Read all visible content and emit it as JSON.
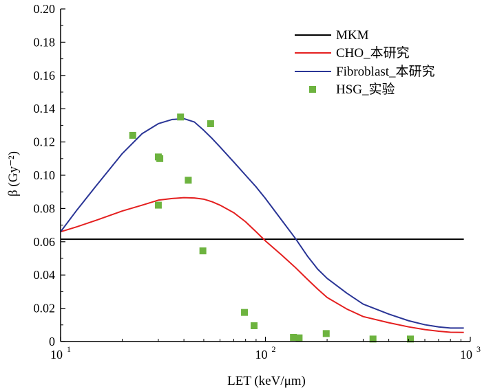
{
  "chart_data": {
    "type": "line",
    "xscale": "log",
    "xlim": [
      10,
      1000
    ],
    "ylim": [
      0,
      0.2
    ],
    "xlabel": "LET (keV/μm)",
    "ylabel": "β (Gy⁻²)",
    "xticks": [
      {
        "value": 10,
        "base": "10",
        "exp": "1"
      },
      {
        "value": 100,
        "base": "10",
        "exp": "2"
      },
      {
        "value": 1000,
        "base": "10",
        "exp": "3"
      }
    ],
    "yticks": [
      "0",
      "0.02",
      "0.04",
      "0.06",
      "0.08",
      "0.10",
      "0.12",
      "0.14",
      "0.16",
      "0.18",
      "0.20"
    ],
    "legend_position": "top-right",
    "series": [
      {
        "name": "MKM",
        "kind": "line",
        "color": "#000000",
        "points": [
          [
            10,
            0.0615
          ],
          [
            930,
            0.0615
          ]
        ]
      },
      {
        "name": "CHO_本研究",
        "kind": "line",
        "color": "#e41f1f",
        "points": [
          [
            10,
            0.066
          ],
          [
            12,
            0.069
          ],
          [
            15,
            0.073
          ],
          [
            20,
            0.0785
          ],
          [
            25,
            0.082
          ],
          [
            30,
            0.085
          ],
          [
            35,
            0.086
          ],
          [
            40,
            0.0865
          ],
          [
            45,
            0.0863
          ],
          [
            50,
            0.0856
          ],
          [
            55,
            0.084
          ],
          [
            60,
            0.082
          ],
          [
            70,
            0.0775
          ],
          [
            80,
            0.072
          ],
          [
            90,
            0.066
          ],
          [
            100,
            0.0605
          ],
          [
            120,
            0.052
          ],
          [
            140,
            0.0445
          ],
          [
            160,
            0.0375
          ],
          [
            180,
            0.0315
          ],
          [
            200,
            0.0265
          ],
          [
            250,
            0.0195
          ],
          [
            300,
            0.015
          ],
          [
            400,
            0.0113
          ],
          [
            500,
            0.0088
          ],
          [
            600,
            0.0072
          ],
          [
            700,
            0.0062
          ],
          [
            800,
            0.0056
          ],
          [
            930,
            0.0055
          ]
        ]
      },
      {
        "name": "Fibroblast_本研究",
        "kind": "line",
        "color": "#2a3596",
        "points": [
          [
            10,
            0.066
          ],
          [
            12,
            0.079
          ],
          [
            15,
            0.094
          ],
          [
            20,
            0.113
          ],
          [
            25,
            0.125
          ],
          [
            30,
            0.131
          ],
          [
            35,
            0.1335
          ],
          [
            40,
            0.134
          ],
          [
            45,
            0.132
          ],
          [
            50,
            0.127
          ],
          [
            55,
            0.122
          ],
          [
            60,
            0.117
          ],
          [
            70,
            0.108
          ],
          [
            80,
            0.1
          ],
          [
            90,
            0.093
          ],
          [
            100,
            0.086
          ],
          [
            120,
            0.073
          ],
          [
            140,
            0.062
          ],
          [
            160,
            0.0515
          ],
          [
            180,
            0.0435
          ],
          [
            200,
            0.038
          ],
          [
            250,
            0.029
          ],
          [
            300,
            0.0225
          ],
          [
            400,
            0.0165
          ],
          [
            500,
            0.0125
          ],
          [
            600,
            0.0101
          ],
          [
            700,
            0.0088
          ],
          [
            800,
            0.0081
          ],
          [
            930,
            0.0081
          ]
        ]
      },
      {
        "name": "HSG_实验",
        "kind": "scatter",
        "color": "#6db33f",
        "points": [
          [
            22.5,
            0.124
          ],
          [
            30,
            0.082
          ],
          [
            30,
            0.111
          ],
          [
            30.5,
            0.11
          ],
          [
            38.5,
            0.135
          ],
          [
            42,
            0.097
          ],
          [
            49.5,
            0.0545
          ],
          [
            54,
            0.131
          ],
          [
            79,
            0.0175
          ],
          [
            88,
            0.0095
          ],
          [
            137,
            0.0025
          ],
          [
            146,
            0.0022
          ],
          [
            198,
            0.0048
          ],
          [
            335,
            0.0015
          ],
          [
            510,
            0.0015
          ]
        ]
      }
    ]
  }
}
